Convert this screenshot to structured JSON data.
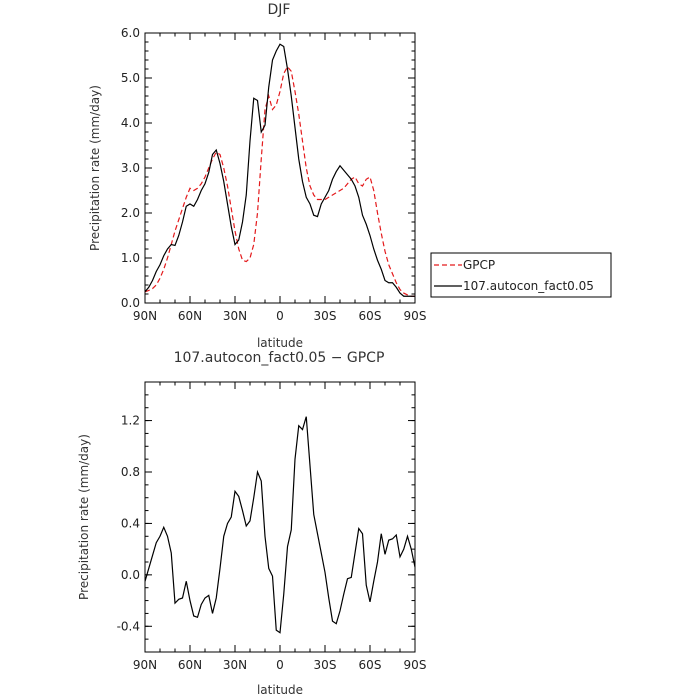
{
  "chart_data": [
    {
      "type": "line",
      "title": "DJF",
      "xlabel": "latitude",
      "ylabel": "Precipitation rate (mm/day)",
      "xlim": [
        90,
        -90
      ],
      "ylim": [
        0,
        6
      ],
      "xticks": [
        90,
        60,
        30,
        0,
        -30,
        -60,
        -90
      ],
      "xtick_labels": [
        "90N",
        "60N",
        "30N",
        "0",
        "30S",
        "60S",
        "90S"
      ],
      "yticks": [
        0,
        1,
        2,
        3,
        4,
        5,
        6
      ],
      "ytick_labels": [
        "0.0",
        "1.0",
        "2.0",
        "3.0",
        "4.0",
        "5.0",
        "6.0"
      ],
      "legend_position": "right",
      "series": [
        {
          "name": "GPCP",
          "color": "#e41a1c",
          "dash": true,
          "x": [
            90,
            87.5,
            85,
            82.5,
            80,
            77.5,
            75,
            72.5,
            70,
            67.5,
            65,
            62.5,
            60,
            57.5,
            55,
            52.5,
            50,
            47.5,
            45,
            42.5,
            40,
            37.5,
            35,
            32.5,
            30,
            27.5,
            25,
            22.5,
            20,
            17.5,
            15,
            12.5,
            10,
            7.5,
            5,
            2.5,
            0,
            -2.5,
            -5,
            -7.5,
            -10,
            -12.5,
            -15,
            -17.5,
            -20,
            -22.5,
            -25,
            -27.5,
            -30,
            -32.5,
            -35,
            -37.5,
            -40,
            -42.5,
            -45,
            -47.5,
            -50,
            -52.5,
            -55,
            -57.5,
            -60,
            -62.5,
            -65,
            -67.5,
            -70,
            -72.5,
            -75,
            -77.5,
            -80,
            -82.5,
            -85,
            -87.5,
            -90
          ],
          "y": [
            0.25,
            0.28,
            0.32,
            0.4,
            0.55,
            0.75,
            1.0,
            1.3,
            1.6,
            1.85,
            2.1,
            2.35,
            2.55,
            2.5,
            2.55,
            2.65,
            2.8,
            3.0,
            3.2,
            3.35,
            3.3,
            3.0,
            2.6,
            2.1,
            1.6,
            1.2,
            0.95,
            0.92,
            1.0,
            1.3,
            2.0,
            3.2,
            4.3,
            4.6,
            4.3,
            4.4,
            4.7,
            5.1,
            5.25,
            5.15,
            4.7,
            4.2,
            3.6,
            3.0,
            2.6,
            2.4,
            2.3,
            2.3,
            2.3,
            2.35,
            2.4,
            2.45,
            2.5,
            2.55,
            2.65,
            2.75,
            2.8,
            2.65,
            2.6,
            2.75,
            2.8,
            2.5,
            2.0,
            1.55,
            1.15,
            0.85,
            0.65,
            0.45,
            0.3,
            0.22,
            0.18,
            0.15,
            0.15
          ]
        },
        {
          "name": "107.autocon_fact0.05",
          "color": "#000000",
          "dash": false,
          "x": [
            90,
            87.5,
            85,
            82.5,
            80,
            77.5,
            75,
            72.5,
            70,
            67.5,
            65,
            62.5,
            60,
            57.5,
            55,
            52.5,
            50,
            47.5,
            45,
            42.5,
            40,
            37.5,
            35,
            32.5,
            30,
            27.5,
            25,
            22.5,
            20,
            17.5,
            15,
            12.5,
            10,
            7.5,
            5,
            2.5,
            0,
            -2.5,
            -5,
            -7.5,
            -10,
            -12.5,
            -15,
            -17.5,
            -20,
            -22.5,
            -25,
            -27.5,
            -30,
            -32.5,
            -35,
            -37.5,
            -40,
            -42.5,
            -45,
            -47.5,
            -50,
            -52.5,
            -55,
            -57.5,
            -60,
            -62.5,
            -65,
            -67.5,
            -70,
            -72.5,
            -75,
            -77.5,
            -80,
            -82.5,
            -85,
            -87.5,
            -90
          ],
          "y": [
            0.25,
            0.35,
            0.5,
            0.7,
            0.85,
            1.05,
            1.2,
            1.3,
            1.28,
            1.5,
            1.8,
            2.15,
            2.2,
            2.15,
            2.3,
            2.5,
            2.65,
            2.9,
            3.3,
            3.4,
            3.1,
            2.7,
            2.2,
            1.7,
            1.3,
            1.4,
            1.8,
            2.4,
            3.6,
            4.55,
            4.5,
            3.8,
            3.95,
            4.8,
            5.4,
            5.6,
            5.75,
            5.7,
            5.2,
            4.6,
            3.9,
            3.2,
            2.7,
            2.35,
            2.2,
            1.95,
            1.92,
            2.2,
            2.35,
            2.5,
            2.75,
            2.92,
            3.05,
            2.95,
            2.85,
            2.75,
            2.6,
            2.35,
            1.95,
            1.75,
            1.5,
            1.2,
            0.95,
            0.75,
            0.5,
            0.45,
            0.45,
            0.35,
            0.22,
            0.15,
            0.15,
            0.15,
            0.15
          ]
        }
      ]
    },
    {
      "type": "line",
      "title": "107.autocon_fact0.05 − GPCP",
      "xlabel": "latitude",
      "ylabel": "Precipitation rate (mm/day)",
      "xlim": [
        90,
        -90
      ],
      "ylim": [
        -0.6,
        1.5
      ],
      "xticks": [
        90,
        60,
        30,
        0,
        -30,
        -60,
        -90
      ],
      "xtick_labels": [
        "90N",
        "60N",
        "30N",
        "0",
        "30S",
        "60S",
        "90S"
      ],
      "yticks": [
        -0.4,
        0,
        0.4,
        0.8,
        1.2
      ],
      "ytick_labels": [
        "-0.4",
        "0.0",
        "0.4",
        "0.8",
        "1.2"
      ],
      "series": [
        {
          "color": "#000000",
          "dash": false,
          "x": [
            90,
            87.5,
            85,
            82.5,
            80,
            77.5,
            75,
            72.5,
            70,
            67.5,
            65,
            62.5,
            60,
            57.5,
            55,
            52.5,
            50,
            47.5,
            45,
            42.5,
            40,
            37.5,
            35,
            32.5,
            30,
            27.5,
            25,
            22.5,
            20,
            17.5,
            15,
            12.5,
            10,
            7.5,
            5,
            2.5,
            0,
            -2.5,
            -5,
            -7.5,
            -10,
            -12.5,
            -15,
            -17.5,
            -20,
            -22.5,
            -25,
            -27.5,
            -30,
            -32.5,
            -35,
            -37.5,
            -40,
            -42.5,
            -45,
            -47.5,
            -50,
            -52.5,
            -55,
            -57.5,
            -60,
            -62.5,
            -65,
            -67.5,
            -70,
            -72.5,
            -75,
            -77.5,
            -80,
            -82.5,
            -85,
            -87.5,
            -90
          ],
          "y": [
            -0.05,
            0.05,
            0.15,
            0.25,
            0.3,
            0.37,
            0.3,
            0.17,
            -0.22,
            -0.19,
            -0.18,
            -0.05,
            -0.2,
            -0.32,
            -0.33,
            -0.23,
            -0.18,
            -0.16,
            -0.3,
            -0.18,
            0.05,
            0.3,
            0.4,
            0.45,
            0.65,
            0.61,
            0.5,
            0.38,
            0.42,
            0.6,
            0.8,
            0.73,
            0.3,
            0.05,
            -0.01,
            -0.43,
            -0.45,
            -0.15,
            0.22,
            0.35,
            0.9,
            1.16,
            1.13,
            1.23,
            0.85,
            0.47,
            0.32,
            0.17,
            0.02,
            -0.18,
            -0.36,
            -0.38,
            -0.28,
            -0.15,
            -0.03,
            -0.02,
            0.17,
            0.36,
            0.32,
            -0.08,
            -0.21,
            -0.05,
            0.1,
            0.32,
            0.16,
            0.27,
            0.28,
            0.31,
            0.14,
            0.2,
            0.3,
            0.2,
            0.06
          ]
        }
      ]
    }
  ]
}
